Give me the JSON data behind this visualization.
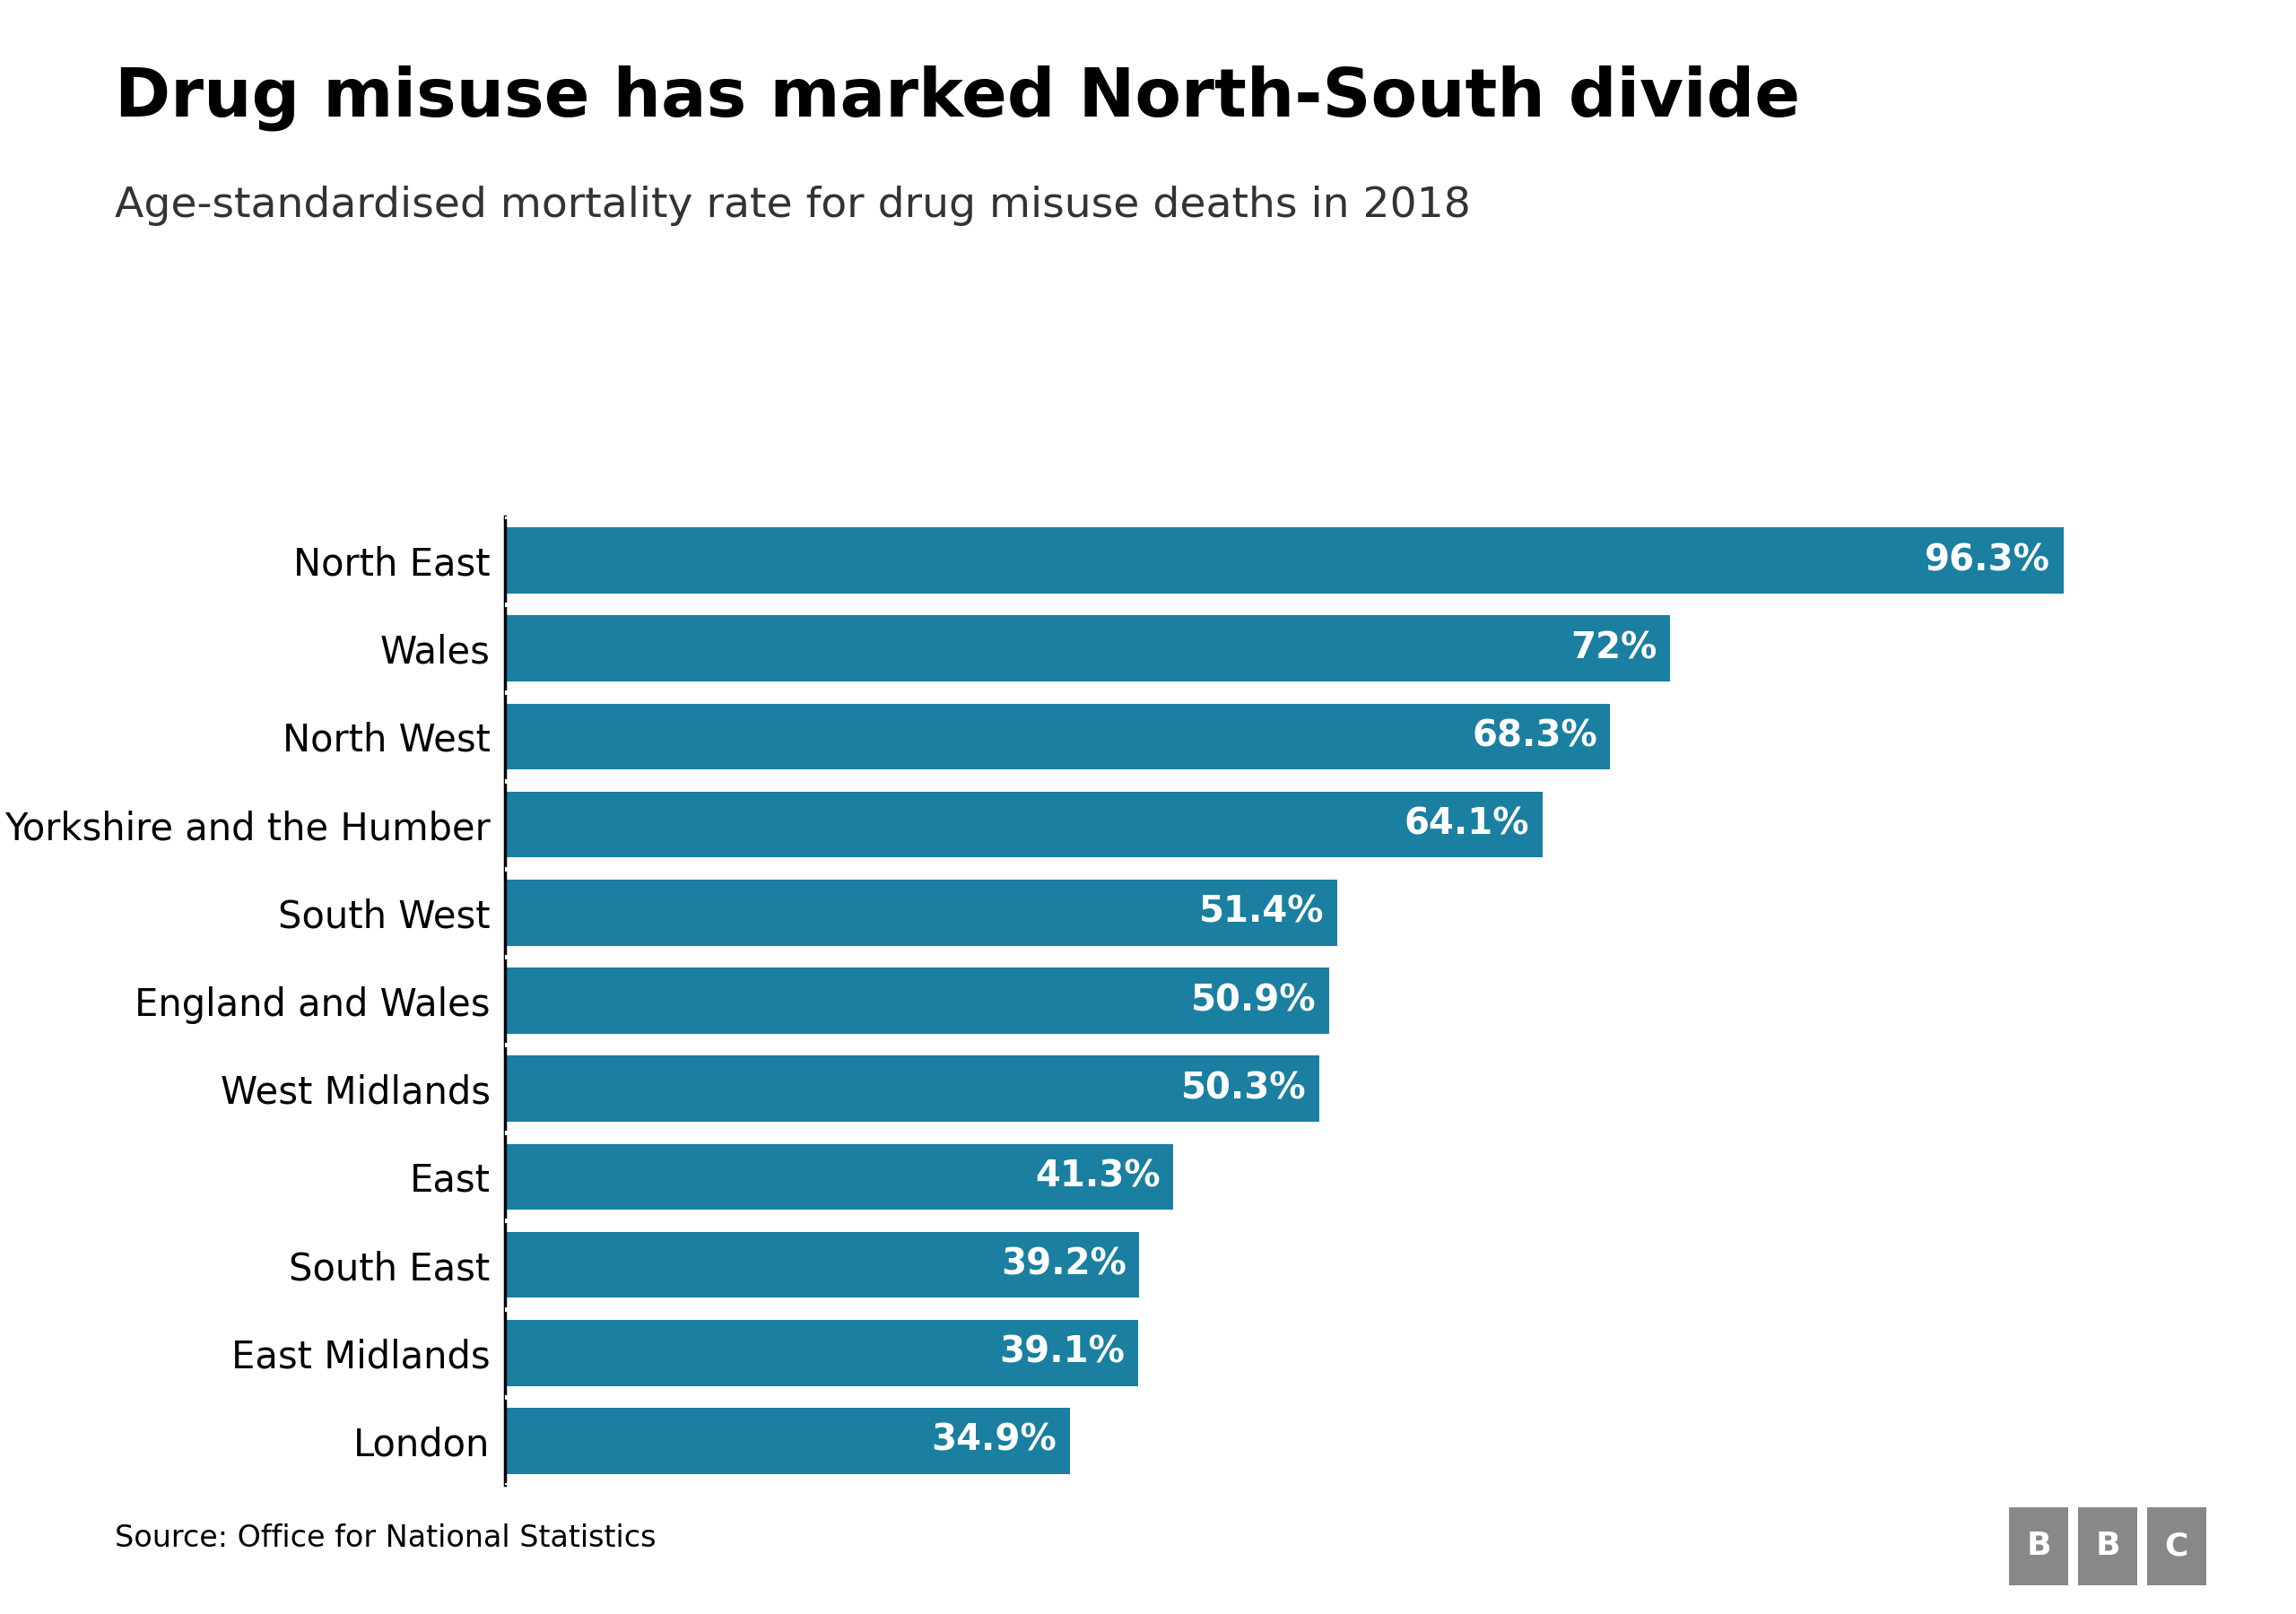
{
  "title": "Drug misuse has marked North-South divide",
  "subtitle": "Age-standardised mortality rate for drug misuse deaths in 2018",
  "source": "Source: Office for National Statistics",
  "categories": [
    "North East",
    "Wales",
    "North West",
    "Yorkshire and the Humber",
    "South West",
    "England and Wales",
    "West Midlands",
    "East",
    "South East",
    "East Midlands",
    "London"
  ],
  "values": [
    96.3,
    72.0,
    68.3,
    64.1,
    51.4,
    50.9,
    50.3,
    41.3,
    39.2,
    39.1,
    34.9
  ],
  "labels": [
    "96.3%",
    "72%",
    "68.3%",
    "64.1%",
    "51.4%",
    "50.9%",
    "50.3%",
    "41.3%",
    "39.2%",
    "39.1%",
    "34.9%"
  ],
  "bar_color": "#1a7fa0",
  "background_color": "#ffffff",
  "title_fontsize": 54,
  "subtitle_fontsize": 34,
  "tick_fontsize": 30,
  "source_fontsize": 24,
  "bar_label_fontsize": 29,
  "bbc_fontsize": 26,
  "xlim": [
    0,
    105
  ],
  "bar_height": 0.75
}
